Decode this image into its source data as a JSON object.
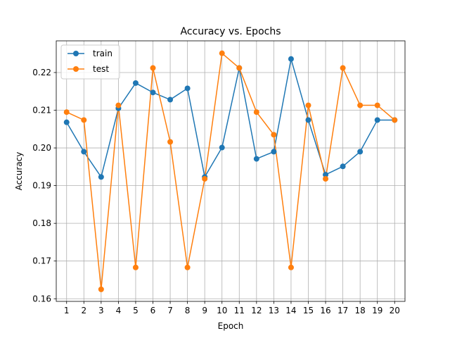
{
  "chart_data": {
    "type": "line",
    "title": "Accuracy vs. Epochs",
    "xlabel": "Epoch",
    "ylabel": "Accuracy",
    "x": [
      1,
      2,
      3,
      4,
      5,
      6,
      7,
      8,
      9,
      10,
      11,
      12,
      13,
      14,
      15,
      16,
      17,
      18,
      19,
      20
    ],
    "xlim": [
      0.4,
      20.6
    ],
    "ylim": [
      0.1593,
      0.2284
    ],
    "yticks": [
      0.16,
      0.17,
      0.18,
      0.19,
      0.2,
      0.21,
      0.22
    ],
    "ytick_labels": [
      "0.16",
      "0.17",
      "0.18",
      "0.19",
      "0.20",
      "0.21",
      "0.22"
    ],
    "grid": true,
    "legend_position": "top-left",
    "series": [
      {
        "name": "train",
        "color": "#1f77b4",
        "marker": "circle",
        "values": [
          0.2068,
          0.199,
          0.1923,
          0.2105,
          0.2172,
          0.2147,
          0.2128,
          0.2158,
          0.1923,
          0.2001,
          0.2212,
          0.1971,
          0.199,
          0.2236,
          0.2074,
          0.1929,
          0.1951,
          0.199,
          0.2074,
          0.2074
        ]
      },
      {
        "name": "test",
        "color": "#ff7f0e",
        "marker": "circle",
        "values": [
          0.2095,
          0.2074,
          0.1625,
          0.2113,
          0.1683,
          0.2212,
          0.2016,
          0.1683,
          0.1918,
          0.2251,
          0.2212,
          0.2095,
          0.2035,
          0.1683,
          0.2113,
          0.1918,
          0.2212,
          0.2113,
          0.2113,
          0.2074
        ]
      }
    ]
  }
}
